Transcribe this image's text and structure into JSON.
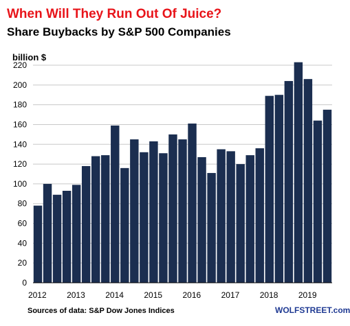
{
  "chart_data": {
    "type": "bar",
    "title": "When Will They Run Out Of Juice?",
    "subtitle": "Share Buybacks by S&P 500 Companies",
    "ylabel": "billion $",
    "xlabel": "",
    "ylim": [
      0,
      220
    ],
    "yticks": [
      0,
      20,
      40,
      60,
      80,
      100,
      120,
      140,
      160,
      180,
      200,
      220
    ],
    "x_year_labels": [
      "2012",
      "2013",
      "2014",
      "2015",
      "2016",
      "2017",
      "2018",
      "2019"
    ],
    "categories": [
      "2012 Q1",
      "2012 Q2",
      "2012 Q3",
      "2012 Q4",
      "2013 Q1",
      "2013 Q2",
      "2013 Q3",
      "2013 Q4",
      "2014 Q1",
      "2014 Q2",
      "2014 Q3",
      "2014 Q4",
      "2015 Q1",
      "2015 Q2",
      "2015 Q3",
      "2015 Q4",
      "2016 Q1",
      "2016 Q2",
      "2016 Q3",
      "2016 Q4",
      "2017 Q1",
      "2017 Q2",
      "2017 Q3",
      "2017 Q4",
      "2018 Q1",
      "2018 Q2",
      "2018 Q3",
      "2018 Q4",
      "2019 Q1",
      "2019 Q2",
      "2019 Q3"
    ],
    "values": [
      78,
      100,
      89,
      93,
      99,
      118,
      128,
      129,
      159,
      116,
      145,
      132,
      143,
      131,
      150,
      145,
      161,
      127,
      111,
      135,
      133,
      120,
      129,
      136,
      189,
      190,
      204,
      223,
      206,
      164,
      175
    ],
    "grid": true,
    "legend": "none",
    "colors": {
      "bar": "#1b2e50",
      "title": "#e8141a",
      "grid": "#c8c8c8",
      "brand": "#1f3a93"
    },
    "source": "Sources of data: S&P Dow Jones Indices",
    "brand": "WOLFSTREET.com"
  }
}
